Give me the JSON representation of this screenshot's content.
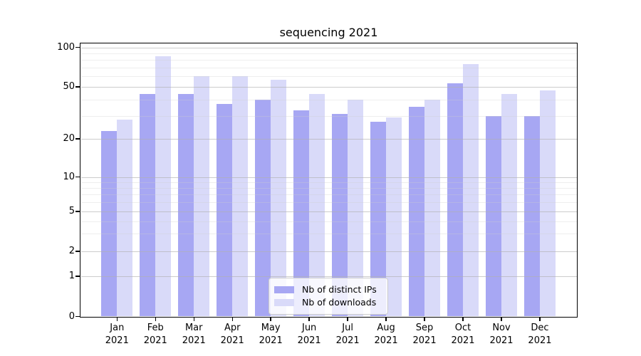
{
  "chart_data": {
    "type": "bar",
    "title": "sequencing 2021",
    "categories": [
      "Jan",
      "Feb",
      "Mar",
      "Apr",
      "May",
      "Jun",
      "Jul",
      "Aug",
      "Sep",
      "Oct",
      "Nov",
      "Dec"
    ],
    "x_tick_year": "2021",
    "series": [
      {
        "name": "Nb of distinct IPs",
        "color": "#a7a7f3",
        "values": [
          23,
          44,
          44,
          37,
          40,
          33,
          31,
          27,
          35,
          53,
          30,
          30
        ]
      },
      {
        "name": "Nb of downloads",
        "color": "#d9daf9",
        "values": [
          28,
          86,
          60,
          60,
          57,
          44,
          40,
          29,
          40,
          75,
          44,
          47
        ]
      }
    ],
    "yscale": "symlog",
    "ylim": [
      0,
      107
    ],
    "y_major_ticks": [
      100,
      50,
      20,
      10,
      5,
      2,
      1,
      0
    ],
    "y_minor_gridlines": [
      3,
      4,
      6,
      7,
      8,
      9,
      30,
      40,
      60,
      70,
      80,
      90
    ],
    "grid": "horizontal major+minor, drawn above bars",
    "legend_position": "lower center"
  },
  "colors": {
    "bar_dark": "#a7a7f3",
    "bar_light": "#d9daf9",
    "grid_major": "#b0b0b0",
    "grid_minor": "#dddddd",
    "axis": "#000000",
    "background": "#ffffff"
  }
}
